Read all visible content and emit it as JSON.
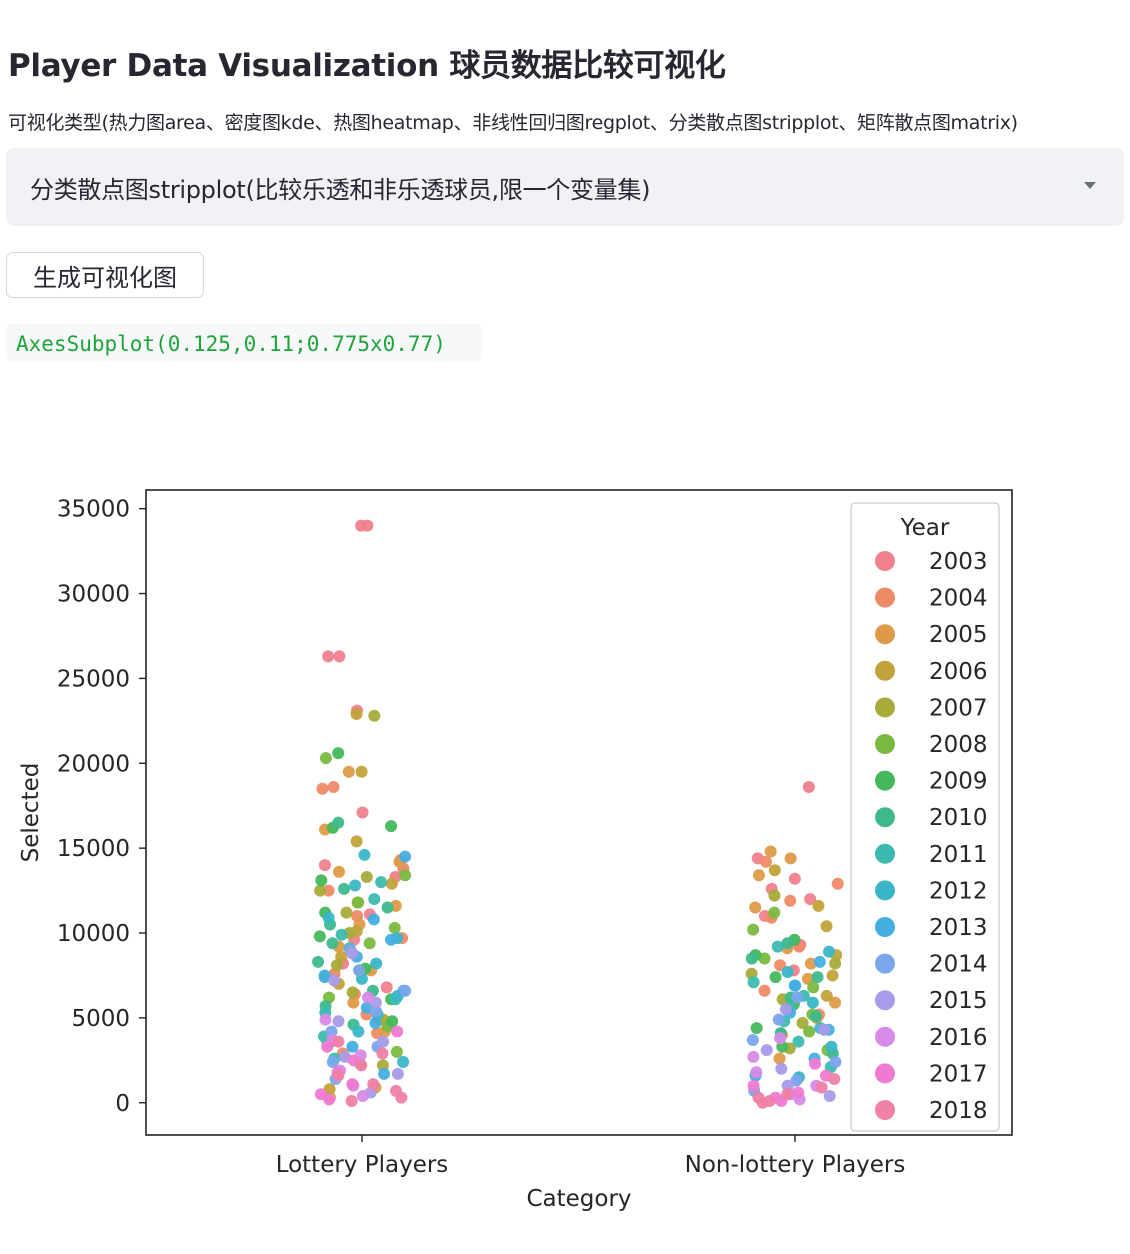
{
  "page": {
    "title": "Player Data Visualization 球员数据比较可视化",
    "select_label": "可视化类型(热力图area、密度图kde、热图heatmap、非线性回归图regplot、分类散点图stripplot、矩阵散点图matrix)",
    "select_value": "分类散点图stripplot(比较乐透和非乐透球员,限一个变量集)",
    "button_label": "生成可视化图",
    "code_output": "AxesSubplot(0.125,0.11;0.775x0.77)"
  },
  "chart_data": {
    "type": "scatter",
    "subtype": "stripplot",
    "xlabel": "Category",
    "ylabel": "Selected",
    "categories": [
      "Lottery Players",
      "Non-lottery Players"
    ],
    "ylim": [
      -1900,
      36100
    ],
    "yticks": [
      0,
      5000,
      10000,
      15000,
      20000,
      25000,
      30000,
      35000
    ],
    "grid": false,
    "legend": {
      "title": "Year",
      "position": "upper right"
    },
    "series": [
      {
        "name": "2003",
        "color": "#f0808e",
        "lottery": [
          34000,
          34000,
          26300,
          26300,
          23100,
          17100,
          14000,
          13300,
          11100,
          9600,
          8200,
          6800
        ],
        "non_lottery": [
          18600,
          14400,
          13200,
          12600,
          12000,
          11000,
          9300,
          7800
        ]
      },
      {
        "name": "2004",
        "color": "#ef8a66",
        "lottery": [
          18600,
          18500,
          14300,
          13800,
          12500,
          11000,
          9700,
          7600,
          6400,
          5200,
          4100,
          2900
        ],
        "non_lottery": [
          14200,
          12900,
          11900,
          10900,
          9200,
          8100,
          6600,
          5200,
          4000
        ]
      },
      {
        "name": "2005",
        "color": "#df9a48",
        "lottery": [
          19500,
          16100,
          14200,
          13600,
          11600,
          10500,
          9200,
          7800,
          5900,
          4200,
          900,
          300
        ],
        "non_lottery": [
          14800,
          14400,
          13400,
          11500,
          9100,
          8200,
          7300,
          5900,
          2600
        ]
      },
      {
        "name": "2006",
        "color": "#c2a23a",
        "lottery": [
          22900,
          19500,
          15400,
          12900,
          11800,
          10100,
          8600,
          7000,
          4900,
          800
        ],
        "non_lottery": [
          13700,
          11600,
          10400,
          8700,
          7500,
          6300,
          5000
        ]
      },
      {
        "name": "2007",
        "color": "#a8ab3a",
        "lottery": [
          22800,
          13300,
          12500,
          11200,
          10000,
          8100,
          6500,
          4900,
          2200
        ],
        "non_lottery": [
          12200,
          8200,
          7600,
          6100,
          4700,
          3200
        ]
      },
      {
        "name": "2008",
        "color": "#7ab940",
        "lottery": [
          20300,
          13400,
          11800,
          10300,
          9400,
          7800,
          6200,
          4500,
          3000
        ],
        "non_lottery": [
          11200,
          10200,
          8500,
          6800,
          5200,
          4200,
          3100
        ]
      },
      {
        "name": "2009",
        "color": "#44b85a",
        "lottery": [
          20600,
          16300,
          16200,
          13100,
          11200,
          9800,
          7900,
          6100,
          4800,
          3600
        ],
        "non_lottery": [
          9600,
          8700,
          7400,
          5800,
          4400,
          3300
        ]
      },
      {
        "name": "2010",
        "color": "#3fb98c",
        "lottery": [
          16500,
          12600,
          11500,
          10500,
          9400,
          8300,
          6600,
          5700,
          4600,
          3500,
          2300
        ],
        "non_lottery": [
          9400,
          8500,
          7400,
          6200,
          5100,
          4100,
          2900
        ]
      },
      {
        "name": "2011",
        "color": "#3cbab0",
        "lottery": [
          13000,
          12000,
          9900,
          9100,
          7400,
          6100,
          5300,
          3900,
          2600
        ],
        "non_lottery": [
          9200,
          7100,
          6300,
          5600,
          4800,
          3600,
          2100
        ]
      },
      {
        "name": "2012",
        "color": "#3ab6c8",
        "lottery": [
          14600,
          12800,
          10900,
          9700,
          8200,
          7300,
          6300,
          5200,
          4200,
          2400
        ],
        "non_lottery": [
          8900,
          7700,
          6900,
          5900,
          4400,
          3300,
          1500
        ]
      },
      {
        "name": "2013",
        "color": "#45aee0",
        "lottery": [
          14500,
          10800,
          9600,
          8600,
          7500,
          6600,
          5600,
          4700,
          3300,
          1700
        ],
        "non_lottery": [
          8300,
          6900,
          5300,
          4300,
          2600,
          1600
        ]
      },
      {
        "name": "2014",
        "color": "#7aa6ec",
        "lottery": [
          9000,
          7800,
          6600,
          5400,
          4200,
          3300,
          2400,
          1400
        ],
        "non_lottery": [
          6200,
          4900,
          3700,
          2400,
          1300,
          700
        ]
      },
      {
        "name": "2015",
        "color": "#a99bea",
        "lottery": [
          8800,
          7200,
          5900,
          4800,
          3600,
          2700,
          1700,
          600
        ],
        "non_lottery": [
          5500,
          4300,
          3100,
          2000,
          1000,
          400
        ]
      },
      {
        "name": "2016",
        "color": "#d78ae8",
        "lottery": [
          6200,
          4900,
          3700,
          2800,
          1900,
          1000,
          400
        ],
        "non_lottery": [
          3800,
          2700,
          1800,
          1000,
          500,
          200
        ]
      },
      {
        "name": "2017",
        "color": "#ef7ad2",
        "lottery": [
          4200,
          3300,
          2500,
          1800,
          1100,
          500,
          200
        ],
        "non_lottery": [
          2300,
          1600,
          1000,
          600,
          300,
          100
        ]
      },
      {
        "name": "2018",
        "color": "#f080a6",
        "lottery": [
          3600,
          2900,
          2200,
          1600,
          1100,
          700,
          300,
          100
        ],
        "non_lottery": [
          1400,
          900,
          500,
          300,
          100,
          0
        ]
      }
    ]
  }
}
